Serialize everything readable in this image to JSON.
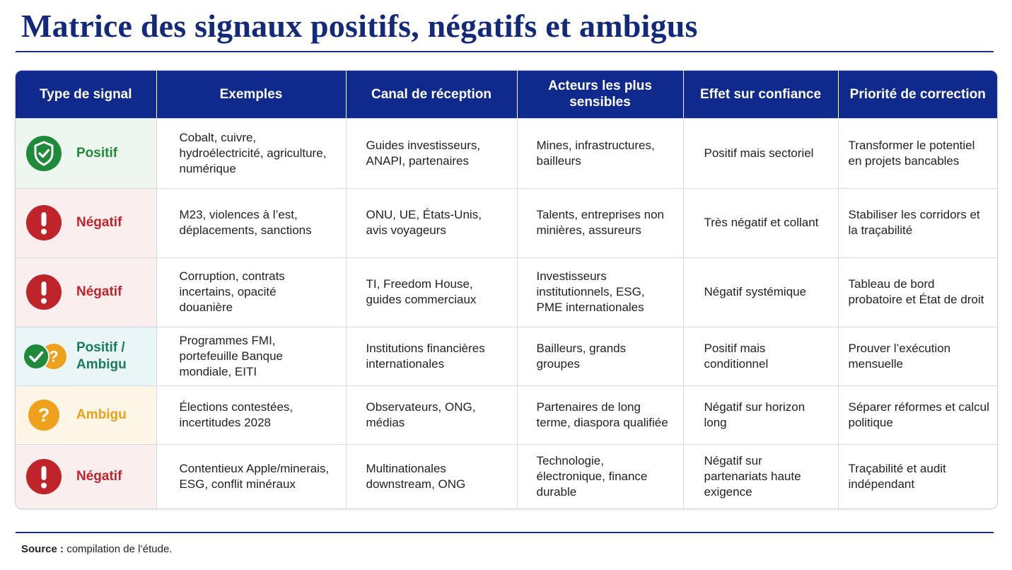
{
  "title": "Matrice des signaux positifs, négatifs et ambigus",
  "colors": {
    "header_bg": "#0f2a8c",
    "title": "#132a7a",
    "positive": "#1f8a3a",
    "negative": "#c0242b",
    "ambiguous": "#f0a11c"
  },
  "table": {
    "headers": [
      "Type de signal",
      "Exemples",
      "Canal de réception",
      "Acteurs les plus sensibles",
      "Effet sur confiance",
      "Priorité de correction"
    ],
    "rows": [
      {
        "kind": "positive",
        "icon": "shield-check-icon",
        "type": "Positif",
        "examples": "Cobalt, cuivre, hydroélectricité, agriculture, numérique",
        "channel": "Guides investisseurs, ANAPI, partenaires",
        "actors": "Mines, infrastructures, bailleurs",
        "effect": "Positif mais sectoriel",
        "priority": "Transformer le potentiel en projets bancables"
      },
      {
        "kind": "negative",
        "icon": "exclamation-icon",
        "type": "Négatif",
        "examples": "M23, violences à l’est, déplacements, sanctions",
        "channel": "ONU, UE, États-Unis, avis voyageurs",
        "actors": "Talents, entreprises non minières, assureurs",
        "effect": "Très négatif et collant",
        "priority": "Stabiliser les corridors et la traçabilité"
      },
      {
        "kind": "negative",
        "icon": "exclamation-icon",
        "type": "Négatif",
        "examples": "Corruption, contrats incertains, opacité douanière",
        "channel": "TI, Freedom House, guides commerciaux",
        "actors": "Investisseurs institutionnels, ESG, PME internationales",
        "effect": "Négatif systémique",
        "priority": "Tableau de bord probatoire et État de droit"
      },
      {
        "kind": "mixed",
        "icon": "check-question-icon",
        "type": "Positif / Ambigu",
        "examples": "Programmes FMI, portefeuille Banque mondiale, EITI",
        "channel": "Institutions financières internationales",
        "actors": "Bailleurs, grands groupes",
        "effect": "Positif mais conditionnel",
        "priority": "Prouver l’exécution mensuelle"
      },
      {
        "kind": "ambiguous",
        "icon": "question-icon",
        "type": "Ambigu",
        "examples": "Élections contestées, incertitudes 2028",
        "channel": "Observateurs, ONG, médias",
        "actors": "Partenaires de long terme, diaspora qualifiée",
        "effect": "Négatif sur horizon long",
        "priority": "Séparer réformes et calcul politique"
      },
      {
        "kind": "negative",
        "icon": "exclamation-icon",
        "type": "Négatif",
        "examples": "Contentieux Apple/minerais, ESG, conflit minéraux",
        "channel": "Multinationales downstream, ONG",
        "actors": "Technologie, électronique, finance durable",
        "effect": "Négatif sur partenariats haute exigence",
        "priority": "Traçabilité et audit indépendant"
      }
    ]
  },
  "source": {
    "label": "Source :",
    "text": "compilation de l’étude."
  }
}
